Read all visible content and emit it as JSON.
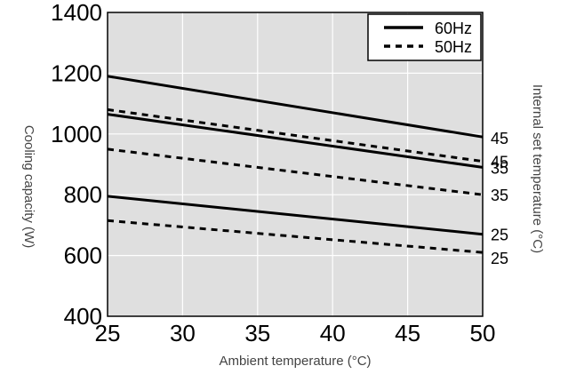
{
  "chart_data": {
    "type": "line",
    "xlabel": "Ambient temperature (°C)",
    "ylabel": "Cooling capacity (W)",
    "y2label": "Internal set temperature (°C)",
    "xlim": [
      25,
      50
    ],
    "ylim": [
      400,
      1400
    ],
    "x_ticks": [
      "25",
      "30",
      "35",
      "40",
      "45",
      "50"
    ],
    "y_ticks": [
      "400",
      "600",
      "800",
      "1000",
      "1200",
      "1400"
    ],
    "grid": true,
    "legend": {
      "placement": "top-right",
      "entries": [
        {
          "name": "60Hz",
          "style": "solid"
        },
        {
          "name": "50Hz",
          "style": "dashed"
        }
      ]
    },
    "series": [
      {
        "group": "60Hz",
        "style": "solid",
        "end_label": "45",
        "x": [
          25,
          50
        ],
        "y": [
          1190,
          990
        ]
      },
      {
        "group": "50Hz",
        "style": "dashed",
        "end_label": "45",
        "x": [
          25,
          50
        ],
        "y": [
          1080,
          910
        ]
      },
      {
        "group": "60Hz",
        "style": "solid",
        "end_label": "35",
        "x": [
          25,
          50
        ],
        "y": [
          1065,
          890
        ]
      },
      {
        "group": "50Hz",
        "style": "dashed",
        "end_label": "35",
        "x": [
          25,
          50
        ],
        "y": [
          950,
          800
        ]
      },
      {
        "group": "60Hz",
        "style": "solid",
        "end_label": "25",
        "x": [
          25,
          50
        ],
        "y": [
          795,
          670
        ]
      },
      {
        "group": "50Hz",
        "style": "dashed",
        "end_label": "25",
        "x": [
          25,
          50
        ],
        "y": [
          715,
          610
        ]
      }
    ],
    "colors": {
      "plot_background": "#dfdfdf",
      "grid": "#ffffff",
      "line": "#000000",
      "axis_text": "#000000",
      "axis_title": "#444444"
    }
  }
}
